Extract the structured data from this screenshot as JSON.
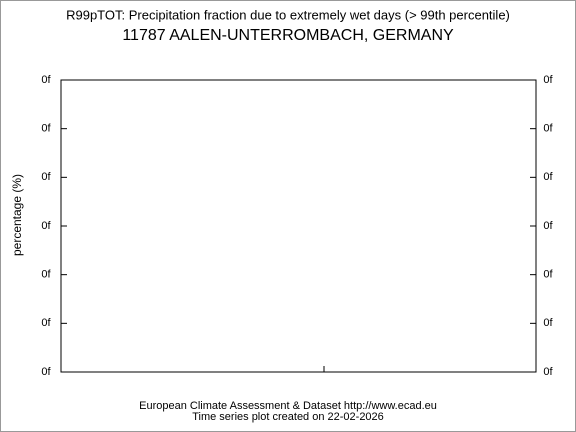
{
  "chart_data": {
    "type": "line",
    "title": "R99pTOT: Precipitation fraction due to extremely wet days (> 99th percentile)",
    "subtitle": "11787 AALEN-UNTERROMBACH, GERMANY",
    "y_label": "percentage (%)",
    "footer": [
      "European Climate Assessment & Dataset  http://www.ecad.eu",
      "Time series plot created on 22-02-2026"
    ],
    "ylim": [
      0,
      6
    ],
    "yticks": [
      {
        "value": 0,
        "label": "0f"
      },
      {
        "value": 1,
        "label": "0f"
      },
      {
        "value": 2,
        "label": "0f"
      },
      {
        "value": 3,
        "label": "0f"
      },
      {
        "value": 4,
        "label": "0f"
      },
      {
        "value": 5,
        "label": "0f"
      },
      {
        "value": 6,
        "label": "0f"
      }
    ],
    "grid": false
  }
}
